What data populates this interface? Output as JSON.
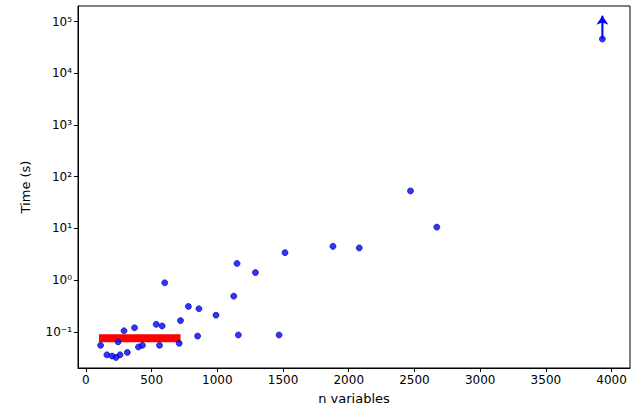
{
  "chart_data": {
    "type": "scatter",
    "x_label": "n variables",
    "y_label": "Time (s)",
    "log": "y",
    "grid": false,
    "xlim": [
      -60,
      4140
    ],
    "xticks": [
      0,
      500,
      1000,
      1500,
      2000,
      2500,
      3000,
      3500,
      4000
    ],
    "ylim": [
      0.02,
      200000
    ],
    "yticks": [
      {
        "value": 0.1,
        "label": "10⁻¹"
      },
      {
        "value": 1,
        "label": "10⁰"
      },
      {
        "value": 10,
        "label": "10¹"
      },
      {
        "value": 100,
        "label": "10²"
      },
      {
        "value": 1000,
        "label": "10³"
      },
      {
        "value": 10000,
        "label": "10⁴"
      },
      {
        "value": 100000,
        "label": "10⁵"
      }
    ],
    "series": [
      {
        "type": "scatter",
        "color": "#0000ff",
        "marker": "circle",
        "x": [
          112,
          160,
          200,
          230,
          260,
          245,
          290,
          315,
          370,
          400,
          430,
          535,
          560,
          580,
          600,
          710,
          720,
          780,
          860,
          850,
          990,
          1125,
          1150,
          1160,
          1290,
          1470,
          1515,
          1880,
          2080,
          2470,
          2670,
          3930
        ],
        "values": [
          0.055,
          0.036,
          0.034,
          0.032,
          0.036,
          0.064,
          0.105,
          0.04,
          0.12,
          0.051,
          0.055,
          0.14,
          0.055,
          0.13,
          0.89,
          0.06,
          0.165,
          0.31,
          0.28,
          0.083,
          0.21,
          0.49,
          2.1,
          0.087,
          1.4,
          0.087,
          3.4,
          4.5,
          4.2,
          53,
          10.6,
          46000
        ]
      },
      {
        "type": "line",
        "color": "#ff0000",
        "marker": "none",
        "x": [
          100,
          720
        ],
        "values": [
          0.075,
          0.075
        ]
      },
      {
        "type": "line",
        "color": "#0000ff",
        "marker": "arrow",
        "x": [
          3930,
          3930
        ],
        "values": [
          46000,
          130000
        ]
      }
    ]
  }
}
